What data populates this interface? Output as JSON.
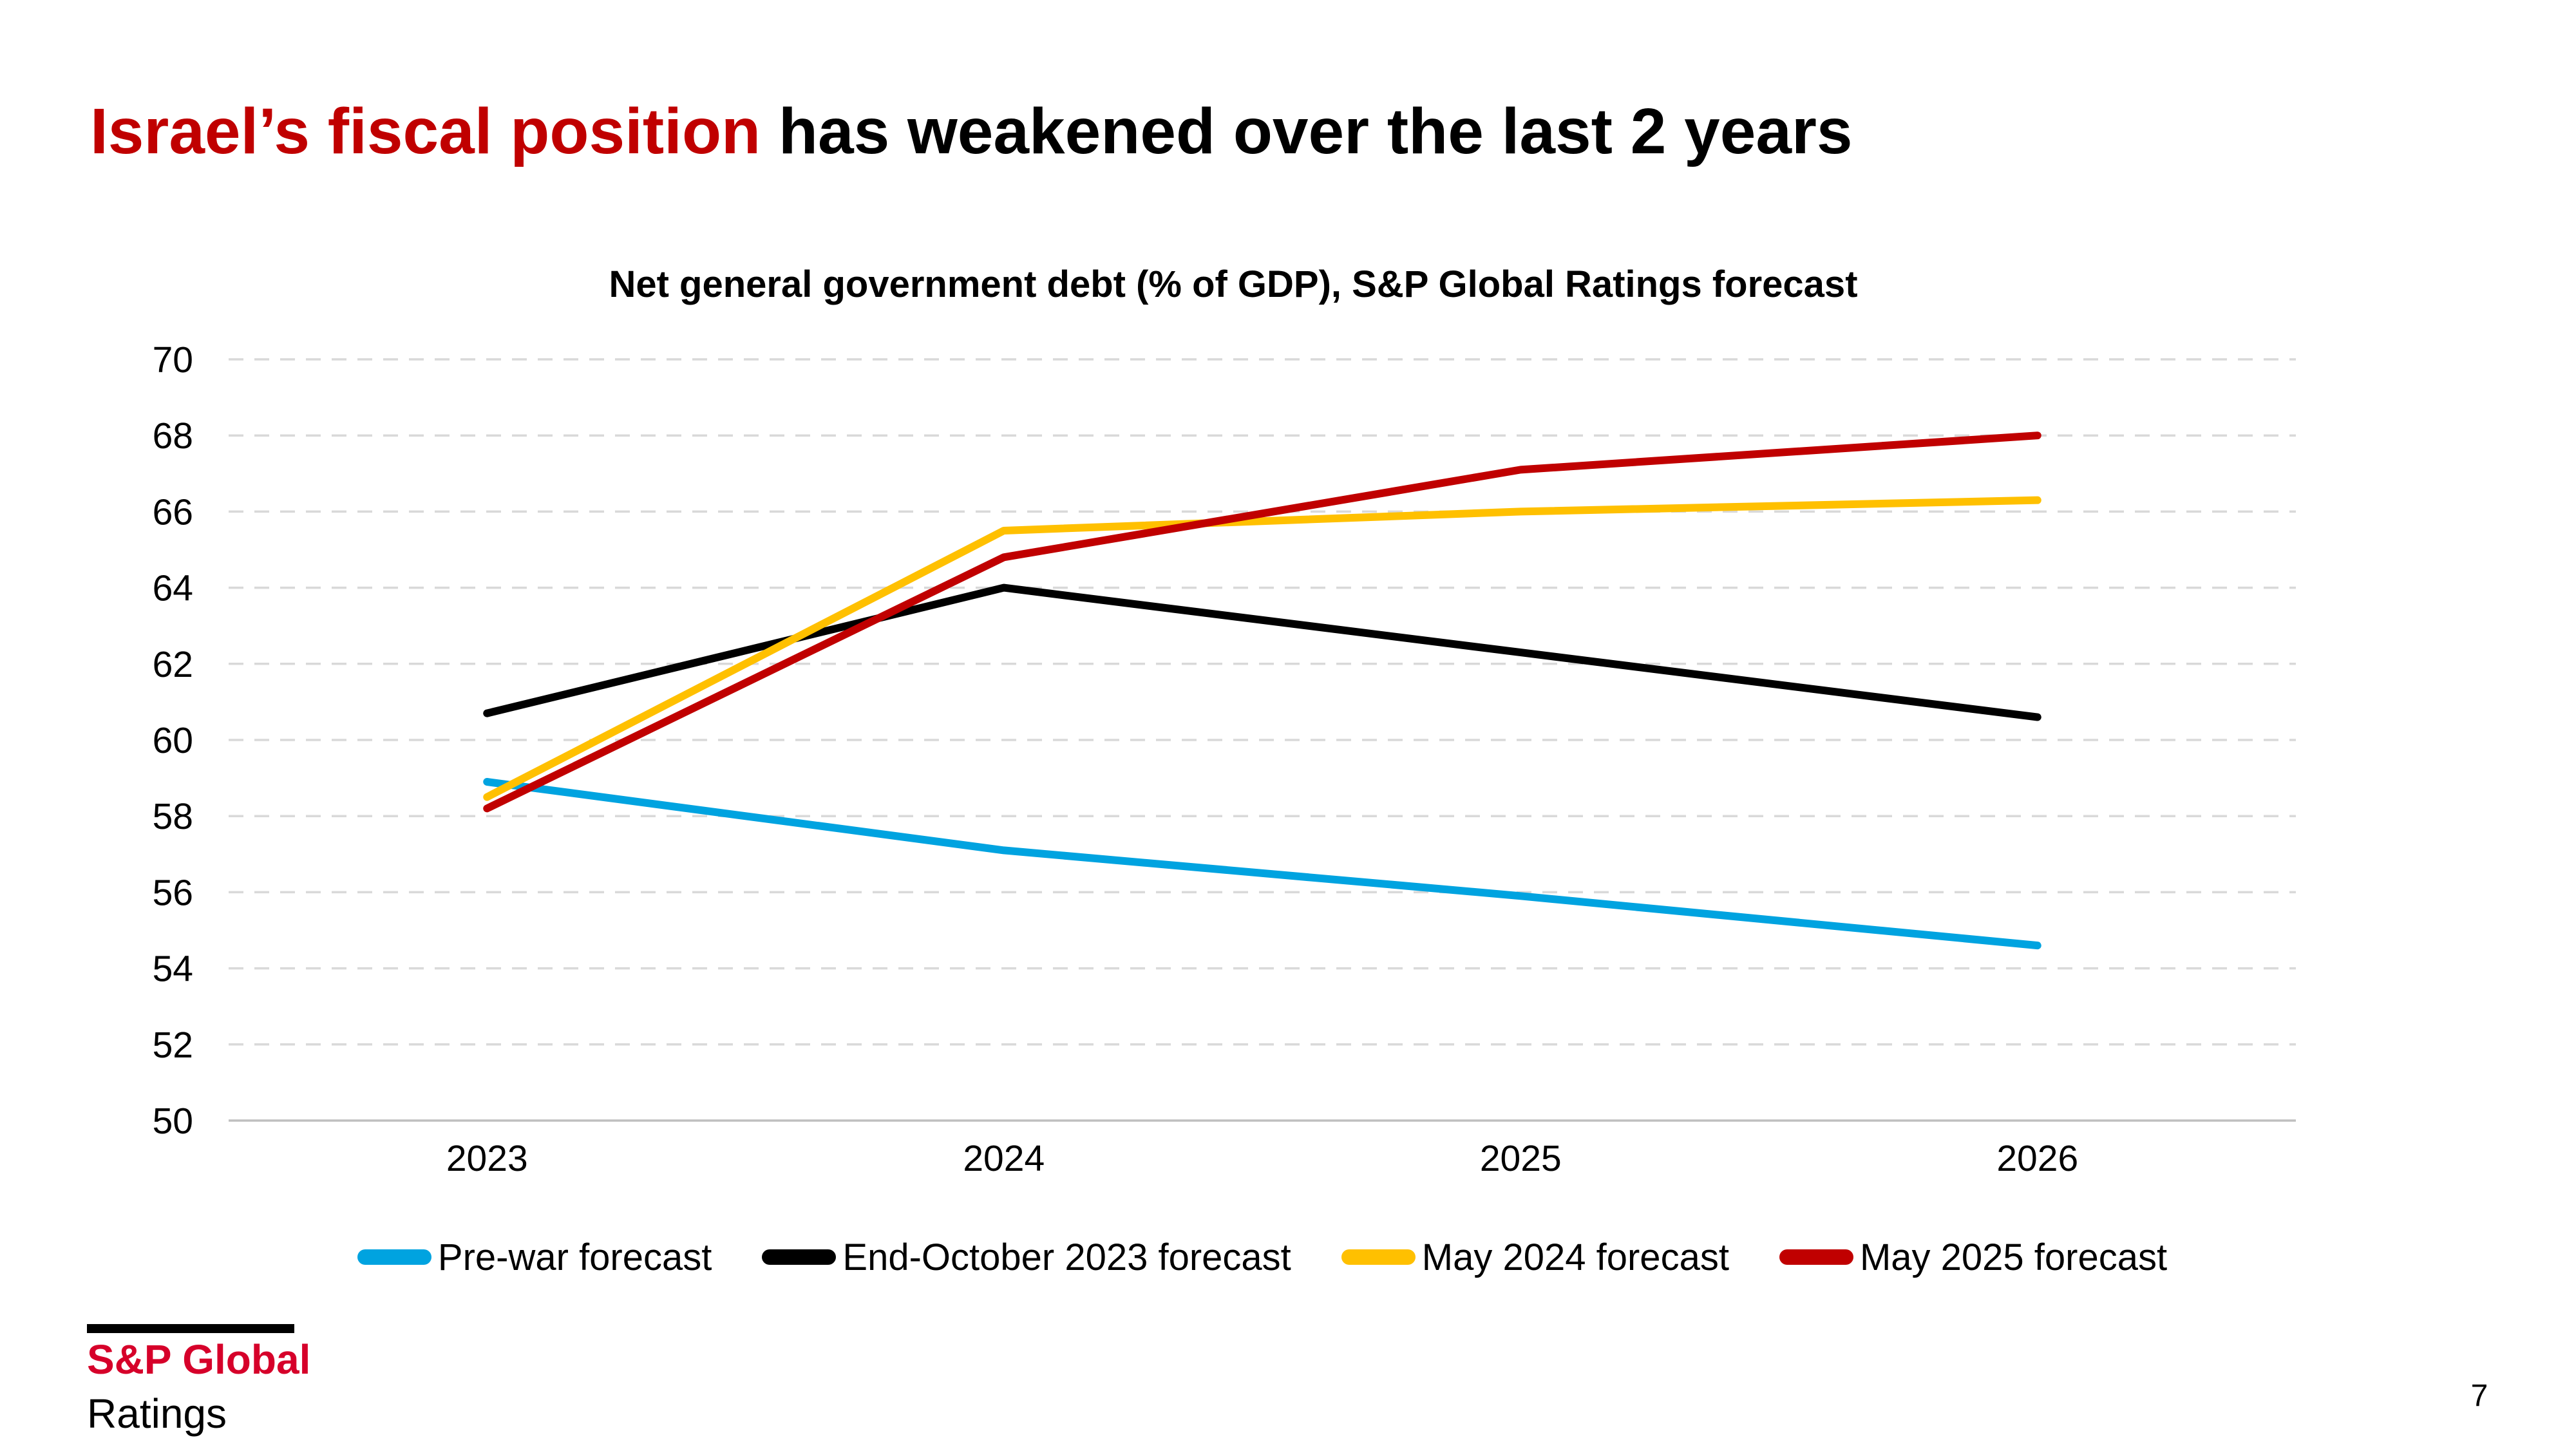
{
  "slide": {
    "title": {
      "highlight": "Israel’s fiscal position",
      "rest": " has weakened over the last 2 years"
    },
    "page_number": "7"
  },
  "footer": {
    "logo_line1": "S&P Global",
    "logo_line2": "Ratings"
  },
  "chart_data": {
    "type": "line",
    "title": "Net general government debt (% of GDP), S&P Global Ratings forecast",
    "categories": [
      "2023",
      "2024",
      "2025",
      "2026"
    ],
    "series": [
      {
        "name": "Pre-war forecast",
        "color": "#00A3E0",
        "values": [
          58.9,
          57.1,
          55.9,
          54.6
        ]
      },
      {
        "name": "End-October 2023 forecast",
        "color": "#000000",
        "values": [
          60.7,
          64.0,
          62.3,
          60.6
        ]
      },
      {
        "name": "May 2024 forecast",
        "color": "#FFC000",
        "values": [
          58.5,
          65.5,
          66.0,
          66.3
        ]
      },
      {
        "name": "May 2025 forecast",
        "color": "#C00000",
        "values": [
          58.2,
          64.8,
          67.1,
          68.0
        ]
      }
    ],
    "ylim": [
      50,
      70
    ],
    "yticks": [
      50,
      52,
      54,
      56,
      58,
      60,
      62,
      64,
      66,
      68,
      70
    ],
    "y_tick_step": 2,
    "grid": "dashed-horizontal",
    "legend_position": "bottom",
    "xlabel": "",
    "ylabel": "",
    "colors": {
      "grid": "#D9D9D9",
      "baseline_axis": "#BFBFBF",
      "title_highlight": "#C00000",
      "logo_red": "#D6002A"
    }
  }
}
